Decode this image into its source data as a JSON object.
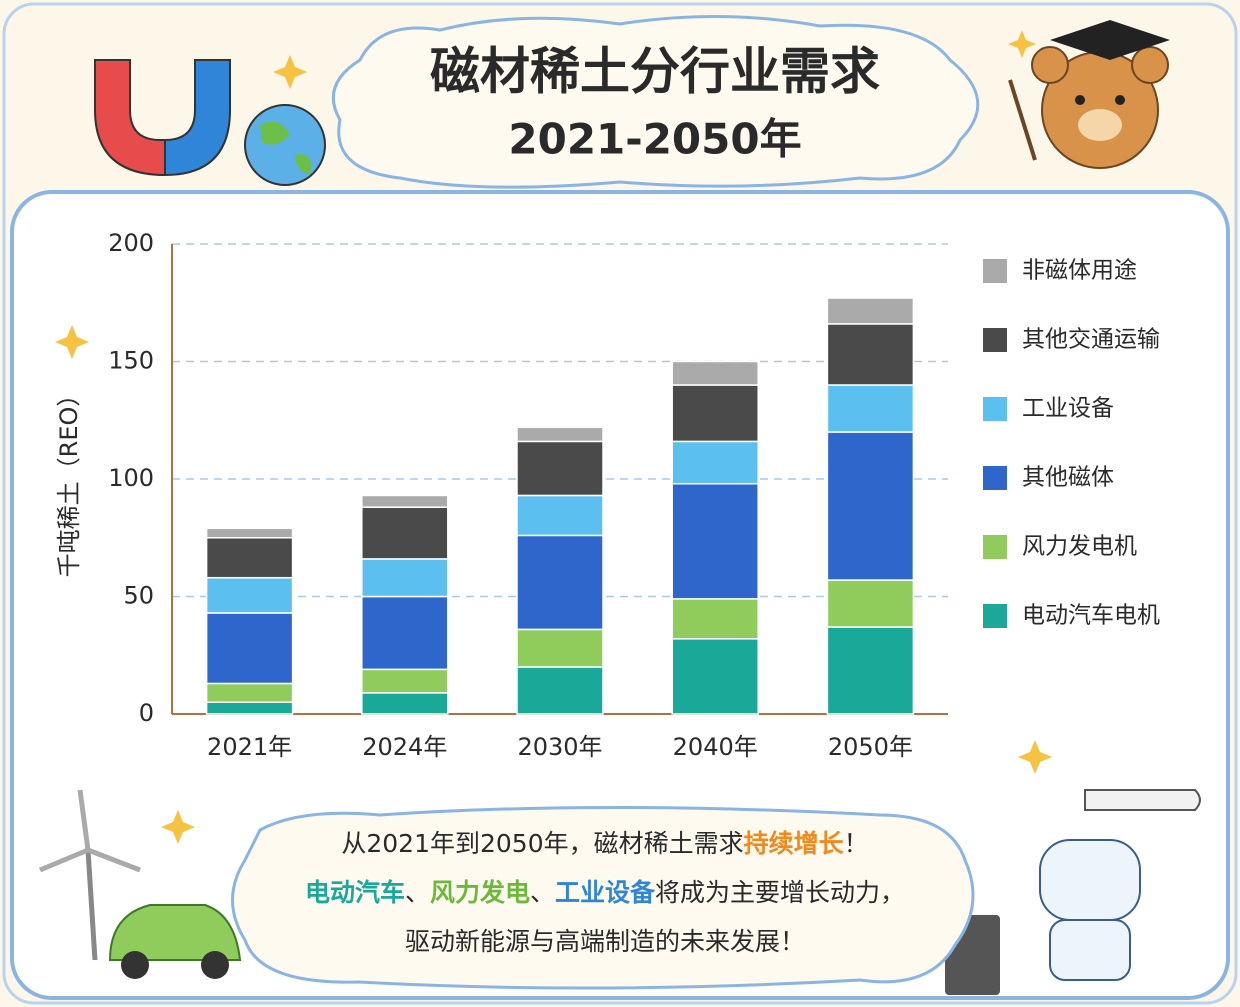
{
  "chart_data": {
    "type": "stacked-bar",
    "title": "磁材稀土分行业需求",
    "subtitle": "2021-2050年",
    "ylabel": "千吨稀土（REO）",
    "categories": [
      "2021年",
      "2024年",
      "2030年",
      "2040年",
      "2050年"
    ],
    "series": [
      {
        "name": "电动汽车电机",
        "color": "#1aa898",
        "values": [
          5,
          9,
          20,
          32,
          37
        ]
      },
      {
        "name": "风力发电机",
        "color": "#8fcc5c",
        "values": [
          8,
          10,
          16,
          17,
          20
        ]
      },
      {
        "name": "其他磁体",
        "color": "#2f66cc",
        "values": [
          30,
          31,
          40,
          49,
          63
        ]
      },
      {
        "name": "工业设备",
        "color": "#5bc0f0",
        "values": [
          15,
          16,
          17,
          18,
          20
        ]
      },
      {
        "name": "其他交通运输",
        "color": "#4a4a4a",
        "values": [
          17,
          22,
          23,
          24,
          26
        ]
      },
      {
        "name": "非磁体用途",
        "color": "#aaaaaa",
        "values": [
          4,
          5,
          6,
          10,
          11
        ]
      }
    ],
    "ylim": [
      0,
      200
    ],
    "yticks": [
      0,
      50,
      100,
      150,
      200
    ],
    "grid": true,
    "legend": "right",
    "notes": [
      [
        {
          "text": "从2021年到2050年，磁材稀土需求"
        },
        {
          "text": "持续增长",
          "color": "#f08a1c"
        },
        {
          "text": "！"
        }
      ],
      [
        {
          "text": "电动汽车",
          "color": "#1aa898"
        },
        {
          "text": "、"
        },
        {
          "text": "风力发电",
          "color": "#6cb83a"
        },
        {
          "text": "、"
        },
        {
          "text": "工业设备",
          "color": "#2f86d8"
        },
        {
          "text": "将成为主要增长动力，"
        }
      ],
      [
        {
          "text": "驱动新能源与高端制造的未来发展！"
        }
      ]
    ]
  }
}
